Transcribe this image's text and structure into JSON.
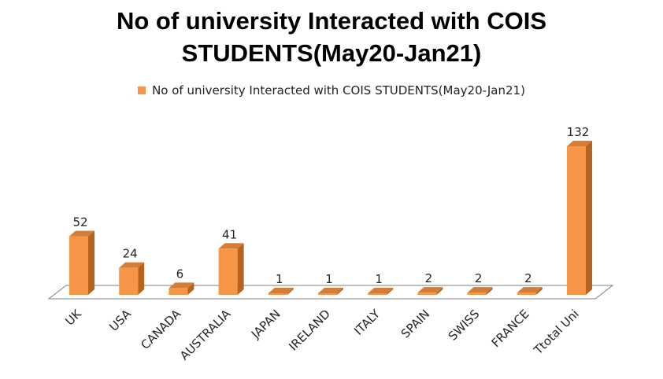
{
  "chart_data": {
    "type": "bar",
    "title_line1": "No of university Interacted with COIS",
    "title_line2": "STUDENTS(May20-Jan21)",
    "categories": [
      "UK",
      "USA",
      "CANADA",
      "AUSTRALIA",
      "JAPAN",
      "IRELAND",
      "ITALY",
      "SPAIN",
      "SWISS",
      "FRANCE",
      "Ttotal Uni"
    ],
    "series": [
      {
        "name": "No of university Interacted with COIS STUDENTS(May20-Jan21)",
        "values": [
          52,
          24,
          6,
          41,
          1,
          1,
          1,
          2,
          2,
          2,
          132
        ]
      }
    ],
    "xlabel": "",
    "ylabel": "",
    "ylim": [
      0,
      132
    ],
    "data_labels": true,
    "legend_position": "top",
    "grid": false,
    "bar_style": "3d",
    "colors": {
      "bar_front": "#f79646",
      "bar_side": "#b5631f",
      "bar_top": "#d57d36",
      "floor": "#ffffff",
      "floor_edge": "#7f7f7f"
    }
  }
}
